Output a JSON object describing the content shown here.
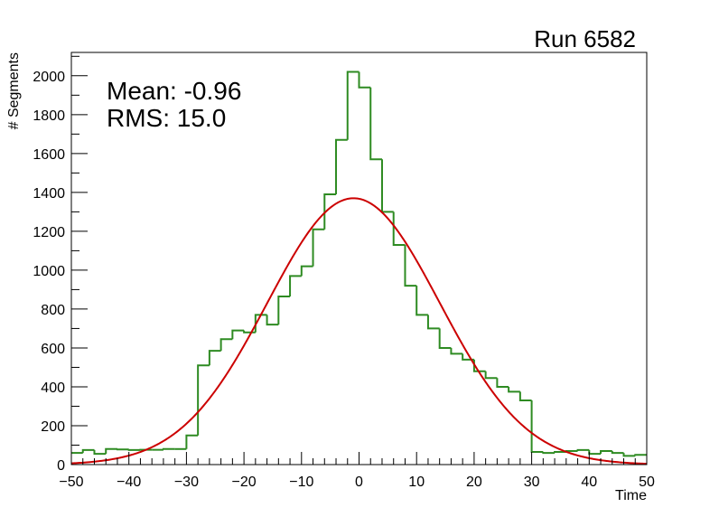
{
  "chart_data": {
    "type": "histogram",
    "title": "Run 6582",
    "xlabel": "Time",
    "ylabel": "# Segments",
    "xlim": [
      -50,
      50
    ],
    "ylim": [
      0,
      2120
    ],
    "x_ticks": [
      -50,
      -40,
      -30,
      -20,
      -10,
      0,
      10,
      20,
      30,
      40,
      50
    ],
    "y_ticks": [
      0,
      200,
      400,
      600,
      800,
      1000,
      1200,
      1400,
      1600,
      1800,
      2000
    ],
    "x_tick_labels": [
      "−50",
      "−40",
      "−30",
      "−20",
      "−10",
      "0",
      "10",
      "20",
      "30",
      "40",
      "50"
    ],
    "y_tick_labels": [
      "0",
      "200",
      "400",
      "600",
      "800",
      "1000",
      "1200",
      "1400",
      "1600",
      "1800",
      "2000"
    ],
    "stats": {
      "mean_text": "Mean: -0.96",
      "rms_text": "RMS:  15.0"
    },
    "histogram": {
      "color": "#2e8b22",
      "bin_width": 2,
      "bin_edges_start": -50,
      "values": [
        60,
        75,
        55,
        80,
        78,
        75,
        76,
        76,
        80,
        80,
        150,
        510,
        585,
        645,
        690,
        680,
        770,
        720,
        865,
        970,
        1020,
        1210,
        1390,
        1670,
        2020,
        1940,
        1570,
        1300,
        1130,
        920,
        770,
        700,
        600,
        570,
        540,
        480,
        445,
        400,
        375,
        330,
        65,
        60,
        65,
        70,
        75,
        55,
        70,
        60,
        45,
        50
      ]
    },
    "fit": {
      "type": "gaussian",
      "color": "#cc0000",
      "amplitude": 1370,
      "mean": -0.96,
      "sigma": 15.0
    },
    "grid": false,
    "frame_color": "#000000"
  }
}
